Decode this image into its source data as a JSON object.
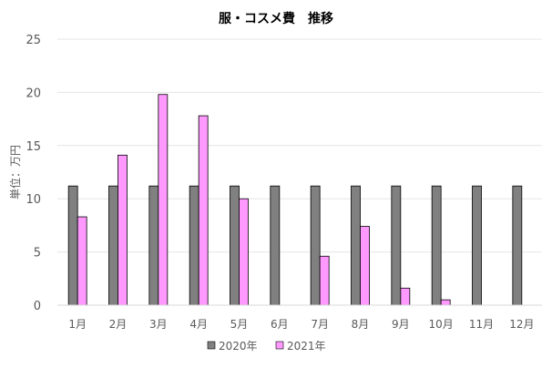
{
  "chart_data": {
    "type": "bar",
    "title": "服・コスメ費　推移",
    "xlabel": "",
    "ylabel": "単位：万円",
    "categories": [
      "1月",
      "2月",
      "3月",
      "4月",
      "5月",
      "6月",
      "7月",
      "8月",
      "9月",
      "10月",
      "11月",
      "12月"
    ],
    "ylim": [
      0,
      25
    ],
    "yticks": [
      0,
      5,
      10,
      15,
      20,
      25
    ],
    "grid": true,
    "legend_position": "bottom",
    "series": [
      {
        "name": "2020年",
        "color": "#808080",
        "values": [
          11.2,
          11.2,
          11.2,
          11.2,
          11.2,
          11.2,
          11.2,
          11.2,
          11.2,
          11.2,
          11.2,
          11.2
        ]
      },
      {
        "name": "2021年",
        "color": "#ff99ff",
        "values": [
          8.3,
          14.1,
          19.8,
          17.8,
          10.0,
          null,
          4.6,
          7.4,
          1.6,
          0.5,
          null,
          null
        ]
      }
    ]
  }
}
